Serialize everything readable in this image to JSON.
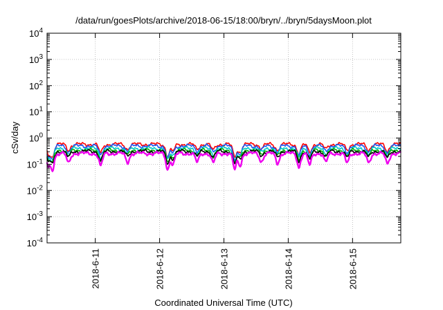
{
  "chart_data": {
    "type": "line",
    "title": "/data/run/goesPlots/archive/2018-06-15/18:00/bryn/../bryn/5daysMoon.plot",
    "xlabel": "Coordinated Universal Time (UTC)",
    "ylabel": "cSv/day",
    "yscale": "log",
    "ylim": [
      0.0001,
      10000
    ],
    "y_ticks": [
      {
        "value": 0.0001,
        "base": "10",
        "exp": "-4"
      },
      {
        "value": 0.001,
        "base": "10",
        "exp": "-3"
      },
      {
        "value": 0.01,
        "base": "10",
        "exp": "-2"
      },
      {
        "value": 0.1,
        "base": "10",
        "exp": "-1"
      },
      {
        "value": 1,
        "base": "10",
        "exp": "0"
      },
      {
        "value": 10,
        "base": "10",
        "exp": "1"
      },
      {
        "value": 100,
        "base": "10",
        "exp": "2"
      },
      {
        "value": 1000,
        "base": "10",
        "exp": "3"
      },
      {
        "value": 10000,
        "base": "10",
        "exp": "4"
      }
    ],
    "xlim": [
      "2018-06-10 06:00",
      "2018-06-15 18:00"
    ],
    "x_ticks": [
      "2018-6-11",
      "2018-6-12",
      "2018-6-13",
      "2018-6-14",
      "2018-6-15"
    ],
    "grid": true,
    "legend": "none",
    "series": [
      {
        "color": "#ff0000",
        "level": 0.58,
        "dip": 0.55
      },
      {
        "color": "#1e56f0",
        "level": 0.5,
        "dip": 0.55
      },
      {
        "color": "#00c8c8",
        "level": 0.4,
        "dip": 0.55
      },
      {
        "color": "#00b000",
        "level": 0.34,
        "dip": 0.55
      },
      {
        "color": "#000000",
        "level": 0.31,
        "dip": 0.55
      },
      {
        "color": "#ee00ee",
        "level": 0.26,
        "dip": 0.38
      }
    ],
    "dips": [
      {
        "t": "2018-06-10 06:30",
        "factor": 0.45
      },
      {
        "t": "2018-06-10 08:00",
        "factor": 0.35
      },
      {
        "t": "2018-06-10 14:00",
        "factor": 0.6
      },
      {
        "t": "2018-06-11 02:00",
        "factor": 0.45
      },
      {
        "t": "2018-06-11 12:00",
        "factor": 0.65
      },
      {
        "t": "2018-06-12 03:00",
        "factor": 0.35
      },
      {
        "t": "2018-06-12 05:00",
        "factor": 0.55
      },
      {
        "t": "2018-06-12 14:00",
        "factor": 0.65
      },
      {
        "t": "2018-06-12 20:00",
        "factor": 0.6
      },
      {
        "t": "2018-06-13 04:00",
        "factor": 0.33
      },
      {
        "t": "2018-06-13 06:00",
        "factor": 0.5
      },
      {
        "t": "2018-06-13 14:00",
        "factor": 0.7
      },
      {
        "t": "2018-06-13 20:00",
        "factor": 0.6
      },
      {
        "t": "2018-06-14 04:00",
        "factor": 0.42
      },
      {
        "t": "2018-06-14 08:00",
        "factor": 0.5
      },
      {
        "t": "2018-06-14 14:00",
        "factor": 0.65
      },
      {
        "t": "2018-06-14 22:00",
        "factor": 0.6
      },
      {
        "t": "2018-06-15 06:00",
        "factor": 0.6
      },
      {
        "t": "2018-06-15 13:00",
        "factor": 0.55
      }
    ]
  }
}
